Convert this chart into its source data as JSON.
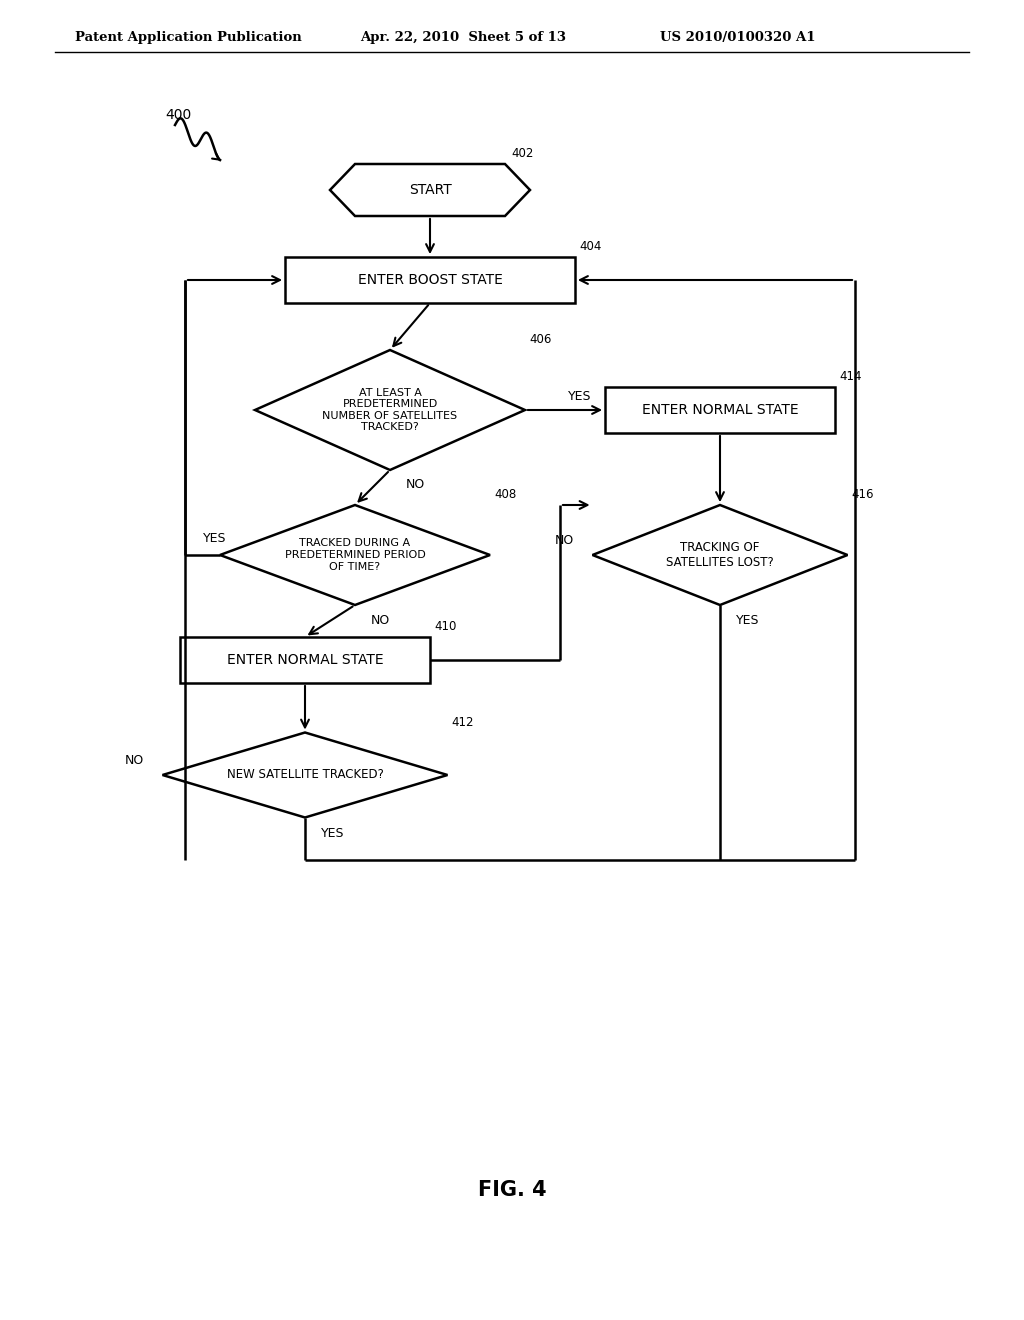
{
  "bg_color": "#ffffff",
  "text_color": "#000000",
  "line_color": "#000000",
  "header_left": "Patent Application Publication",
  "header_mid": "Apr. 22, 2010  Sheet 5 of 13",
  "header_right": "US 2010/0100320 A1",
  "fig_label": "FIG. 4",
  "diagram_label": "400"
}
